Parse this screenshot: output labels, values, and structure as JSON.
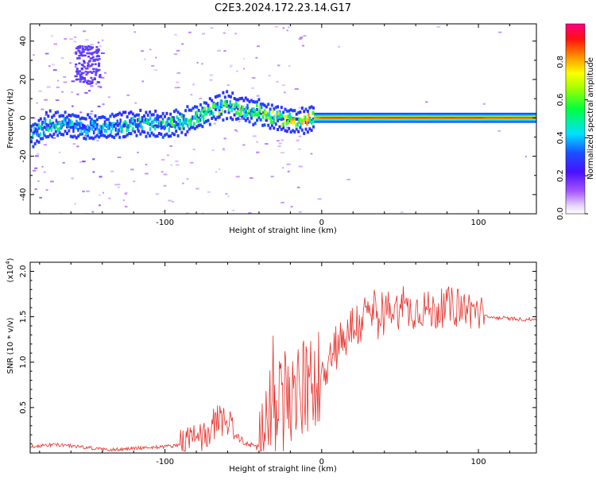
{
  "figure": {
    "title": "C2E3.2024.172.23.14.G17"
  },
  "colorbar": {
    "label": "Normalized spectral amplitude",
    "ticks": [
      0.0,
      0.2,
      0.4,
      0.6,
      0.8
    ],
    "tick_labels": [
      "0.0",
      "0.2",
      "0.4",
      "0.6",
      "0.8"
    ]
  },
  "chart_data": [
    {
      "type": "heatmap",
      "title": "C2E3.2024.172.23.14.G17",
      "xlabel": "Height of straight line (km)",
      "ylabel": "Frequency (Hz)",
      "xlim": [
        -186,
        137
      ],
      "ylim": [
        -50,
        49
      ],
      "x_ticks": [
        -100,
        0,
        100
      ],
      "x_tick_labels": [
        "-100",
        "0",
        "100"
      ],
      "y_ticks": [
        -40,
        -20,
        0,
        20,
        40
      ],
      "y_tick_labels": [
        "-40",
        "-20",
        "0",
        "20",
        "40"
      ],
      "colorscale": "rainbow (purple-blue-cyan-green-yellow-red-magenta)",
      "ridge": {
        "name": "",
        "x": [
          -186,
          -175,
          -165,
          -155,
          -140,
          -130,
          -120,
          -110,
          -100,
          -90,
          -80,
          -70,
          -60,
          -55,
          -50,
          -45,
          -40,
          -35,
          -30,
          -25,
          -20,
          -15,
          -10,
          -5,
          0,
          10,
          30,
          60,
          90,
          100,
          137
        ],
        "y": [
          -9,
          -4,
          -3,
          -5,
          -5,
          -4,
          -3,
          -3,
          -4,
          -2,
          0,
          4,
          7,
          5,
          4,
          3,
          4,
          1,
          0,
          -1,
          -1,
          -2,
          -1,
          0,
          0,
          0,
          0,
          0,
          0,
          0,
          0
        ]
      },
      "amplitude": {
        "name": "",
        "x": [
          -186,
          -170,
          -150,
          -130,
          -110,
          -90,
          -70,
          -55,
          -45,
          -35,
          -25,
          -15,
          -5,
          0,
          10,
          30,
          60,
          90,
          100,
          105,
          137
        ],
        "y": [
          0.45,
          0.5,
          0.4,
          0.45,
          0.5,
          0.55,
          0.55,
          0.6,
          0.6,
          0.65,
          0.7,
          0.75,
          0.85,
          0.95,
          0.95,
          0.95,
          0.95,
          0.95,
          0.95,
          0.92,
          0.92
        ]
      }
    },
    {
      "type": "line",
      "title": "",
      "xlabel": "Height of straight line (km)",
      "ylabel": "SNR (10 * v/v)",
      "y_multiplier_label": "(x10",
      "y_multiplier_exp": "4",
      "y_multiplier_close": ")",
      "xlim": [
        -186,
        137
      ],
      "ylim": [
        0,
        2.1
      ],
      "x_ticks": [
        -100,
        0,
        100
      ],
      "x_tick_labels": [
        "-100",
        "0",
        "100"
      ],
      "y_ticks": [
        0.5,
        1.0,
        1.5,
        2.0
      ],
      "y_tick_labels": [
        "0.5",
        "1.0",
        "1.5",
        "2.0"
      ],
      "line_color": "#e8302a",
      "series": [
        {
          "name": "",
          "x": [
            -186,
            -180,
            -170,
            -160,
            -150,
            -140,
            -130,
            -120,
            -110,
            -100,
            -95,
            -90,
            -85,
            -80,
            -75,
            -70,
            -65,
            -60,
            -55,
            -50,
            -45,
            -40,
            -38,
            -35,
            -30,
            -25,
            -20,
            -15,
            -10,
            -5,
            0,
            5,
            10,
            15,
            20,
            25,
            30,
            35,
            40,
            45,
            50,
            55,
            60,
            65,
            70,
            75,
            80,
            85,
            90,
            95,
            100,
            103,
            105,
            110,
            120,
            130,
            137
          ],
          "y": [
            0.07,
            0.08,
            0.09,
            0.08,
            0.06,
            0.04,
            0.04,
            0.05,
            0.06,
            0.07,
            0.08,
            0.1,
            0.12,
            0.15,
            0.18,
            0.3,
            0.38,
            0.32,
            0.2,
            0.12,
            0.09,
            0.06,
            0.12,
            0.3,
            0.45,
            0.55,
            0.58,
            0.65,
            0.7,
            0.78,
            0.9,
            1.05,
            1.2,
            1.3,
            1.38,
            1.45,
            1.5,
            1.52,
            1.55,
            1.58,
            1.58,
            1.57,
            1.58,
            1.6,
            1.55,
            1.58,
            1.62,
            1.6,
            1.6,
            1.58,
            1.55,
            1.52,
            1.5,
            1.49,
            1.48,
            1.47,
            1.47
          ]
        }
      ]
    }
  ]
}
